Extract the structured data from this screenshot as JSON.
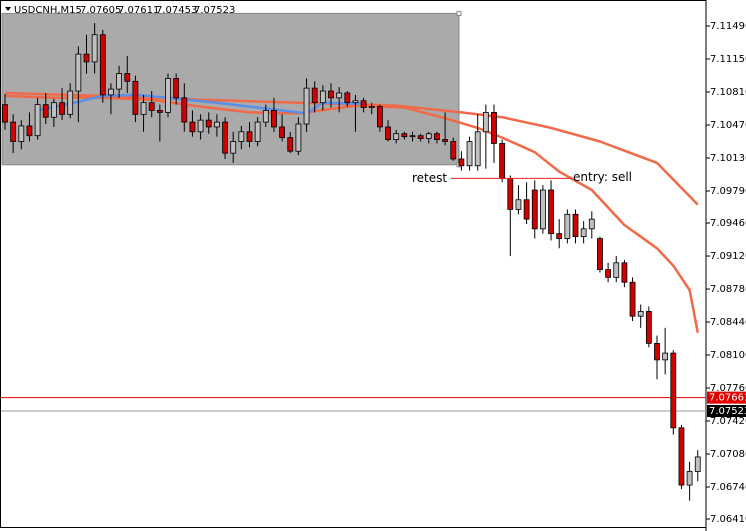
{
  "chart_data": {
    "type": "candlestick",
    "header": {
      "symbol": "USDCNH,M15",
      "ohlc": [
        7.07605,
        7.07611,
        7.07453,
        7.07523
      ]
    },
    "ylim": [
      7.06328,
      7.11758
    ],
    "yticks": [
      {
        "value": 7.1149,
        "label": "7.11490"
      },
      {
        "value": 7.1115,
        "label": "7.11150"
      },
      {
        "value": 7.1081,
        "label": "7.10810"
      },
      {
        "value": 7.1047,
        "label": "7.10470"
      },
      {
        "value": 7.1013,
        "label": "7.10130"
      },
      {
        "value": 7.0979,
        "label": "7.09790"
      },
      {
        "value": 7.0946,
        "label": "7.09460"
      },
      {
        "value": 7.0912,
        "label": "7.09120"
      },
      {
        "value": 7.0878,
        "label": "7.08780"
      },
      {
        "value": 7.0844,
        "label": "7.08440"
      },
      {
        "value": 7.081,
        "label": "7.08100"
      },
      {
        "value": 7.0776,
        "label": "7.07760"
      },
      {
        "value": 7.0742,
        "label": "7.07420"
      },
      {
        "value": 7.0708,
        "label": "7.07080"
      },
      {
        "value": 7.0674,
        "label": "7.06740"
      },
      {
        "value": 7.0641,
        "label": "7.06410"
      }
    ],
    "up_color": "#c0c0c0",
    "down_color": "#d00000",
    "ohlc": [
      [
        7.1068,
        7.1079,
        7.1042,
        7.105
      ],
      [
        7.105,
        7.1058,
        7.1018,
        7.103
      ],
      [
        7.103,
        7.1052,
        7.1022,
        7.1046
      ],
      [
        7.1046,
        7.106,
        7.103,
        7.1036
      ],
      [
        7.1036,
        7.1075,
        7.1032,
        7.1068
      ],
      [
        7.1068,
        7.108,
        7.1048,
        7.1055
      ],
      [
        7.1055,
        7.1074,
        7.1045,
        7.107
      ],
      [
        7.107,
        7.1085,
        7.1052,
        7.1058
      ],
      [
        7.1058,
        7.109,
        7.1054,
        7.1082
      ],
      [
        7.1082,
        7.1128,
        7.105,
        7.112
      ],
      [
        7.112,
        7.114,
        7.11,
        7.1112
      ],
      [
        7.1112,
        7.1152,
        7.11,
        7.114
      ],
      [
        7.114,
        7.1145,
        7.107,
        7.1078
      ],
      [
        7.1078,
        7.109,
        7.1058,
        7.1084
      ],
      [
        7.1084,
        7.1108,
        7.1075,
        7.11
      ],
      [
        7.11,
        7.1118,
        7.108,
        7.1092
      ],
      [
        7.1092,
        7.1098,
        7.105,
        7.1058
      ],
      [
        7.1058,
        7.1078,
        7.104,
        7.107
      ],
      [
        7.107,
        7.1082,
        7.1055,
        7.1062
      ],
      [
        7.1062,
        7.1068,
        7.103,
        7.106
      ],
      [
        7.106,
        7.11,
        7.1055,
        7.1095
      ],
      [
        7.1095,
        7.11,
        7.1068,
        7.1075
      ],
      [
        7.1075,
        7.109,
        7.104,
        7.105
      ],
      [
        7.105,
        7.1062,
        7.1035,
        7.104
      ],
      [
        7.104,
        7.1058,
        7.1032,
        7.1052
      ],
      [
        7.1052,
        7.106,
        7.1038,
        7.1045
      ],
      [
        7.1045,
        7.1058,
        7.1035,
        7.105
      ],
      [
        7.105,
        7.1055,
        7.1012,
        7.1018
      ],
      [
        7.1018,
        7.104,
        7.1008,
        7.103
      ],
      [
        7.103,
        7.1046,
        7.1022,
        7.104
      ],
      [
        7.104,
        7.105,
        7.1024,
        7.103
      ],
      [
        7.103,
        7.1055,
        7.1025,
        7.105
      ],
      [
        7.105,
        7.1068,
        7.1045,
        7.1062
      ],
      [
        7.1062,
        7.1075,
        7.104,
        7.1045
      ],
      [
        7.1045,
        7.1058,
        7.103,
        7.1034
      ],
      [
        7.1034,
        7.104,
        7.1018,
        7.102
      ],
      [
        7.102,
        7.1055,
        7.1016,
        7.1048
      ],
      [
        7.1048,
        7.1095,
        7.104,
        7.1085
      ],
      [
        7.1085,
        7.1092,
        7.106,
        7.107
      ],
      [
        7.107,
        7.1088,
        7.1062,
        7.1082
      ],
      [
        7.1082,
        7.109,
        7.1065,
        7.1075
      ],
      [
        7.1075,
        7.1086,
        7.106,
        7.108
      ],
      [
        7.108,
        7.1082,
        7.1066,
        7.107
      ],
      [
        7.107,
        7.1078,
        7.104,
        7.1072
      ],
      [
        7.1072,
        7.1075,
        7.106,
        7.1065
      ],
      [
        7.1065,
        7.107,
        7.1058,
        7.1066
      ],
      [
        7.1066,
        7.1068,
        7.104,
        7.1045
      ],
      [
        7.1045,
        7.1052,
        7.103,
        7.1032
      ],
      [
        7.1032,
        7.1042,
        7.1028,
        7.1038
      ],
      [
        7.1038,
        7.104,
        7.1032,
        7.1035
      ],
      [
        7.1035,
        7.104,
        7.103,
        7.1036
      ],
      [
        7.1036,
        7.1038,
        7.103,
        7.1033
      ],
      [
        7.1033,
        7.104,
        7.1028,
        7.1038
      ],
      [
        7.1038,
        7.104,
        7.1028,
        7.1032
      ],
      [
        7.1032,
        7.106,
        7.1026,
        7.103
      ],
      [
        7.103,
        7.1034,
        7.101,
        7.1012
      ],
      [
        7.1012,
        7.102,
        7.1,
        7.1005
      ],
      [
        7.1005,
        7.1035,
        7.1,
        7.103
      ],
      [
        7.1005,
        7.1058,
        7.1,
        7.104
      ],
      [
        7.104,
        7.1068,
        7.1002,
        7.106
      ],
      [
        7.106,
        7.1068,
        7.1008,
        7.1028
      ],
      [
        7.1028,
        7.1032,
        7.0988,
        7.0992
      ],
      [
        7.0992,
        7.0995,
        7.0912,
        7.096
      ],
      [
        7.096,
        7.0985,
        7.0955,
        7.097
      ],
      [
        7.097,
        7.0988,
        7.0945,
        7.095
      ],
      [
        7.098,
        7.099,
        7.093,
        7.094
      ],
      [
        7.094,
        7.0985,
        7.0935,
        7.098
      ],
      [
        7.098,
        7.099,
        7.0928,
        7.0935
      ],
      [
        7.0935,
        7.095,
        7.092,
        7.093
      ],
      [
        7.093,
        7.096,
        7.0925,
        7.0955
      ],
      [
        7.0955,
        7.096,
        7.0925,
        7.0932
      ],
      [
        7.0932,
        7.0948,
        7.0925,
        7.094
      ],
      [
        7.094,
        7.0958,
        7.093,
        7.095
      ],
      [
        7.093,
        7.0932,
        7.0895,
        7.0898
      ],
      [
        7.0898,
        7.0905,
        7.0885,
        7.089
      ],
      [
        7.089,
        7.0912,
        7.0885,
        7.0905
      ],
      [
        7.0905,
        7.0908,
        7.088,
        7.0885
      ],
      [
        7.0885,
        7.089,
        7.0845,
        7.085
      ],
      [
        7.085,
        7.0862,
        7.0838,
        7.0855
      ],
      [
        7.0855,
        7.086,
        7.0818,
        7.0822
      ],
      [
        7.0822,
        7.083,
        7.0785,
        7.0805
      ],
      [
        7.0805,
        7.0838,
        7.079,
        7.0812
      ],
      [
        7.0812,
        7.0815,
        7.0728,
        7.0735
      ],
      [
        7.0735,
        7.0738,
        7.0672,
        7.0676
      ],
      [
        7.0676,
        7.07,
        7.066,
        7.069
      ],
      [
        7.069,
        7.0712,
        7.068,
        7.0705
      ]
    ],
    "series": [
      {
        "color": "#f06a4a",
        "x": [
          0,
          12,
          24,
          36,
          48,
          56,
          61,
          67,
          73,
          80,
          85
        ],
        "values": [
          7.108,
          7.1077,
          7.1073,
          7.107,
          7.1067,
          7.106,
          7.1055,
          7.1044,
          7.103,
          7.1008,
          7.0965
        ]
      },
      {
        "color": "#f06a4a",
        "x": [
          0,
          6,
          12,
          18,
          24,
          30,
          36,
          43,
          49,
          54,
          58,
          61,
          65,
          68,
          72,
          76,
          80,
          82,
          84,
          85
        ],
        "values": [
          7.1077,
          7.1075,
          7.1075,
          7.1073,
          7.1066,
          7.106,
          7.1059,
          7.1067,
          7.1065,
          7.1054,
          7.1044,
          7.1034,
          7.1019,
          7.0999,
          7.098,
          7.0944,
          7.092,
          7.0902,
          7.0877,
          7.0833
        ]
      },
      {
        "color": "#5b8fe8",
        "x": [
          4,
          8,
          12,
          16,
          20,
          26,
          32,
          37,
          39,
          44
        ],
        "values": [
          7.1062,
          7.1069,
          7.1077,
          7.1078,
          7.1075,
          7.107,
          7.1064,
          7.1059,
          7.107,
          7.1069
        ]
      }
    ],
    "zone": [
      7.1006,
      7.1162
    ],
    "retest_level": 7.0992,
    "annotations": [
      "retest",
      "entry: sell"
    ],
    "price_lines": [
      {
        "value": 7.07661,
        "color": "#e00000"
      },
      {
        "value": 7.07523,
        "color": "#000000"
      }
    ]
  }
}
